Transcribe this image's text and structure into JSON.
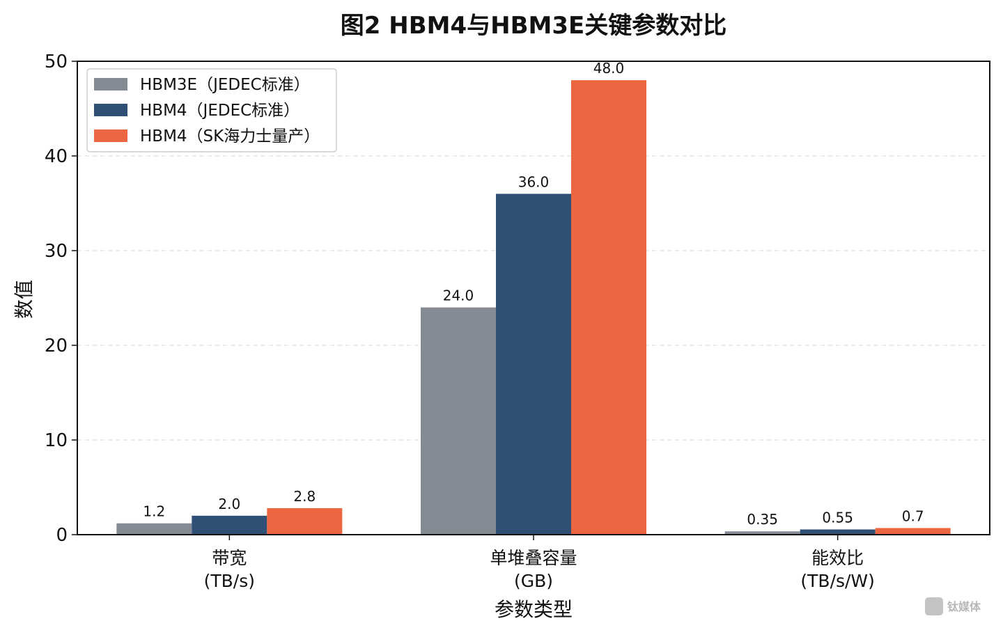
{
  "chart_data": {
    "type": "bar",
    "title": "图2  HBM4与HBM3E关键参数对比",
    "xlabel": "参数类型",
    "ylabel": "数值",
    "ylim": [
      0,
      50
    ],
    "yticks": [
      "0",
      "10",
      "20",
      "30",
      "40",
      "50"
    ],
    "categories": [
      [
        "带宽",
        "(TB/s)"
      ],
      [
        "单堆叠容量",
        "(GB)"
      ],
      [
        "能效比",
        "(TB/s/W)"
      ]
    ],
    "series": [
      {
        "name": "HBM3E（JEDEC标准）",
        "color": "#858b94",
        "values": [
          1.2,
          24.0,
          0.35
        ],
        "labels": [
          "1.2",
          "24.0",
          "0.35"
        ]
      },
      {
        "name": "HBM4（JEDEC标准）",
        "color": "#2f4f75",
        "values": [
          2.0,
          36.0,
          0.55
        ],
        "labels": [
          "2.0",
          "36.0",
          "0.55"
        ]
      },
      {
        "name": "HBM4（SK海力士量产）",
        "color": "#ec6642",
        "values": [
          2.8,
          48.0,
          0.7
        ],
        "labels": [
          "2.8",
          "48.0",
          "0.7"
        ]
      }
    ],
    "grid": "horizontal-dashed",
    "legend_position": "top-left"
  },
  "watermark": "钛媒体"
}
